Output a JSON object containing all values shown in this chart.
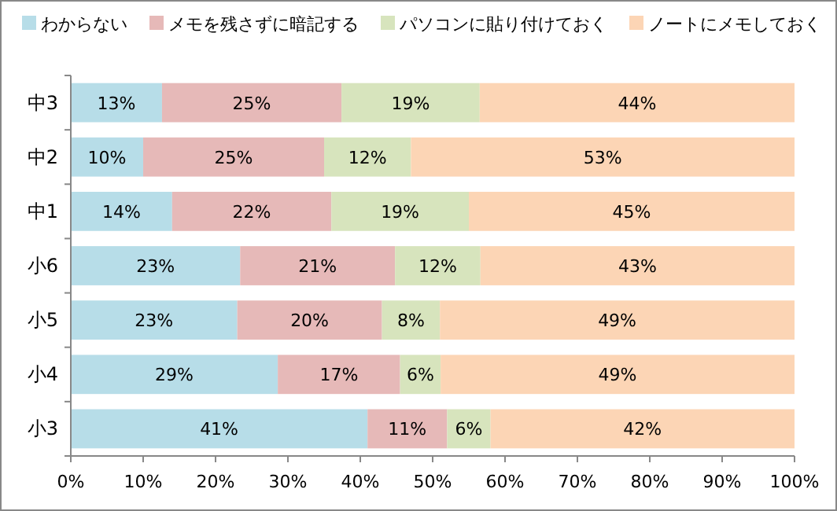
{
  "chart_data": {
    "type": "bar",
    "orientation": "horizontal",
    "stacked": true,
    "legend": "top",
    "categories": [
      "中3",
      "中2",
      "中1",
      "小6",
      "小5",
      "小4",
      "小3"
    ],
    "xlim": [
      0,
      100
    ],
    "xticks": [
      {
        "value": 0,
        "label": "0%"
      },
      {
        "value": 10,
        "label": "10%"
      },
      {
        "value": 20,
        "label": "20%"
      },
      {
        "value": 30,
        "label": "30%"
      },
      {
        "value": 40,
        "label": "40%"
      },
      {
        "value": 50,
        "label": "50%"
      },
      {
        "value": 60,
        "label": "60%"
      },
      {
        "value": 70,
        "label": "70%"
      },
      {
        "value": 80,
        "label": "80%"
      },
      {
        "value": 90,
        "label": "90%"
      },
      {
        "value": 100,
        "label": "100%"
      }
    ],
    "series": [
      {
        "name": "わからない",
        "color": "#b7dde8",
        "values": [
          12.6,
          10,
          14,
          23.4,
          23,
          28.6,
          41
        ],
        "value_labels": [
          "13%",
          "10%",
          "14%",
          "23%",
          "23%",
          "29%",
          "41%"
        ]
      },
      {
        "name": "メモを残さずに暗記する",
        "color": "#e6b9b8",
        "values": [
          24.8,
          25,
          22,
          21.4,
          20,
          16.9,
          11
        ],
        "value_labels": [
          "25%",
          "25%",
          "22%",
          "21%",
          "20%",
          "17%",
          "11%"
        ]
      },
      {
        "name": "パソコンに貼り付けておく",
        "color": "#d7e4bd",
        "values": [
          19.1,
          12,
          19,
          11.8,
          8,
          5.6,
          6
        ],
        "value_labels": [
          "19%",
          "12%",
          "19%",
          "12%",
          "8%",
          "6%",
          "6%"
        ]
      },
      {
        "name": "ノートにメモしておく",
        "color": "#fcd5b5",
        "values": [
          43.5,
          53,
          45,
          43.4,
          49,
          48.9,
          42
        ],
        "value_labels": [
          "44%",
          "53%",
          "45%",
          "43%",
          "49%",
          "49%",
          "42%"
        ]
      }
    ]
  }
}
